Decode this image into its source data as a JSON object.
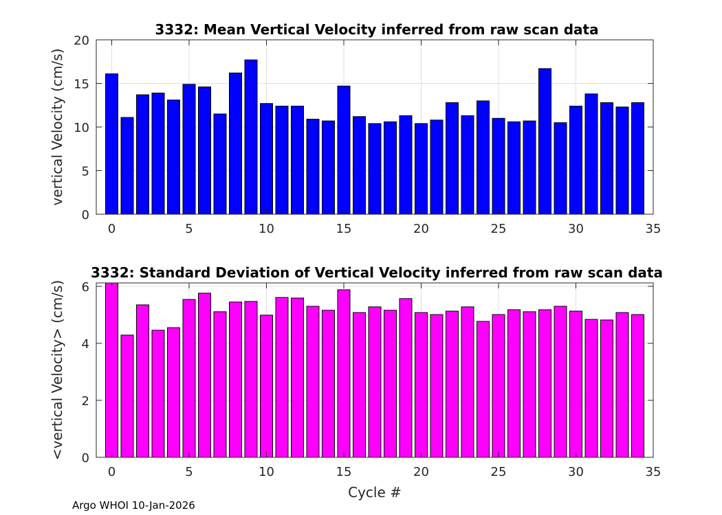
{
  "chart_data": [
    {
      "type": "bar",
      "title": "3332: Mean Vertical Velocity inferred from raw scan data",
      "xlabel": "",
      "ylabel": "vertical Velocity (cm/s)",
      "xlim": [
        -1,
        35
      ],
      "ylim": [
        0,
        20
      ],
      "xticks": [
        0,
        5,
        10,
        15,
        20,
        25,
        30,
        35
      ],
      "yticks": [
        0,
        5,
        10,
        15,
        20
      ],
      "grid": true,
      "color": "#0000ff",
      "x": [
        0,
        1,
        2,
        3,
        4,
        5,
        6,
        7,
        8,
        9,
        10,
        11,
        12,
        13,
        14,
        15,
        16,
        17,
        18,
        19,
        20,
        21,
        22,
        23,
        24,
        25,
        26,
        27,
        28,
        29,
        30,
        31,
        32,
        33,
        34
      ],
      "values": [
        16.1,
        11.1,
        13.7,
        13.9,
        13.1,
        14.9,
        14.6,
        11.5,
        16.2,
        17.7,
        12.7,
        12.4,
        12.4,
        10.9,
        10.7,
        14.7,
        11.2,
        10.4,
        10.6,
        11.3,
        10.4,
        10.8,
        12.8,
        11.3,
        13.0,
        11.0,
        10.6,
        10.7,
        16.7,
        10.5,
        12.4,
        13.8,
        12.8,
        12.3,
        12.8
      ]
    },
    {
      "type": "bar",
      "title": "3332: Standard Deviation of Vertical Velocity inferred from raw scan data",
      "xlabel": "Cycle #",
      "ylabel": "<vertical Velocity> (cm/s)",
      "xlim": [
        -1,
        35
      ],
      "ylim": [
        0,
        6.12
      ],
      "xticks": [
        0,
        5,
        10,
        15,
        20,
        25,
        30,
        35
      ],
      "yticks": [
        0,
        2,
        4,
        6
      ],
      "grid": true,
      "color": "#ff00ff",
      "x": [
        0,
        1,
        2,
        3,
        4,
        5,
        6,
        7,
        8,
        9,
        10,
        11,
        12,
        13,
        14,
        15,
        16,
        17,
        18,
        19,
        20,
        21,
        22,
        23,
        24,
        25,
        26,
        27,
        28,
        29,
        30,
        31,
        32,
        33,
        34
      ],
      "values": [
        6.12,
        4.29,
        5.35,
        4.46,
        4.55,
        5.54,
        5.76,
        5.11,
        5.45,
        5.47,
        4.99,
        5.61,
        5.59,
        5.3,
        5.16,
        5.88,
        5.08,
        5.28,
        5.16,
        5.57,
        5.08,
        5.01,
        5.13,
        5.28,
        4.77,
        5.01,
        5.18,
        5.11,
        5.18,
        5.3,
        5.13,
        4.84,
        4.82,
        5.08,
        5.01
      ]
    }
  ],
  "footer": "Argo WHOI 10-Jan-2026"
}
